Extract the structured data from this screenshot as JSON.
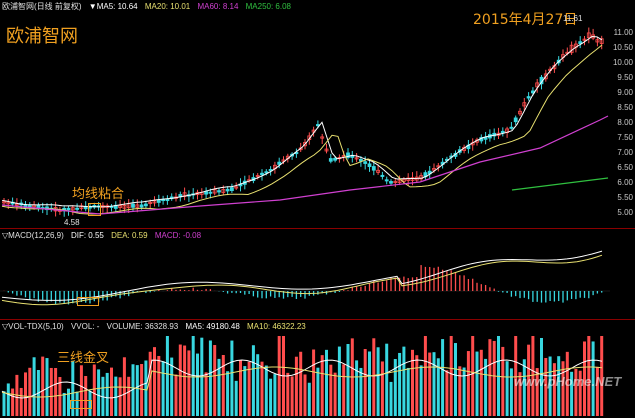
{
  "price": {
    "title": "欧浦智网",
    "header": {
      "name": "欧浦智网(日线 前复权)",
      "ma5": "▼MA5: 10.64",
      "ma20": "MA20: 10.01",
      "ma60": "MA60: 8.14",
      "ma250": "MA250: 6.08"
    },
    "date_note": "2015年4月27日",
    "high_label": "11.61",
    "low_label": "4.58",
    "annotation": "均线粘合",
    "y_ticks": [
      "11.00",
      "10.50",
      "10.00",
      "9.50",
      "9.00",
      "8.50",
      "8.00",
      "7.50",
      "7.00",
      "6.50",
      "6.00",
      "5.50",
      "5.00"
    ]
  },
  "macd": {
    "header": {
      "name": "▽MACD(12,26,9)",
      "dif": "DIF: 0.55",
      "dea": "DEA: 0.59",
      "macd": "MACD: -0.08"
    }
  },
  "volume": {
    "header": {
      "name": "▽VOL-TDX(5,10)",
      "vvol": "VVOL: -",
      "vol": "VOLUME: 36328.93",
      "ma5": "MA5: 49180.48",
      "ma10": "MA10: 46322.23"
    },
    "annotation": "三线金叉",
    "watermark": "www.pHome.NET"
  },
  "colors": {
    "up": "#ff4d4d",
    "down": "#38d7e0",
    "ma5": "#ffffff",
    "ma20": "#e8e070",
    "ma60": "#d040d0",
    "ma250": "#30c040",
    "label": "#f0a020",
    "separator": "#8a0000"
  }
}
